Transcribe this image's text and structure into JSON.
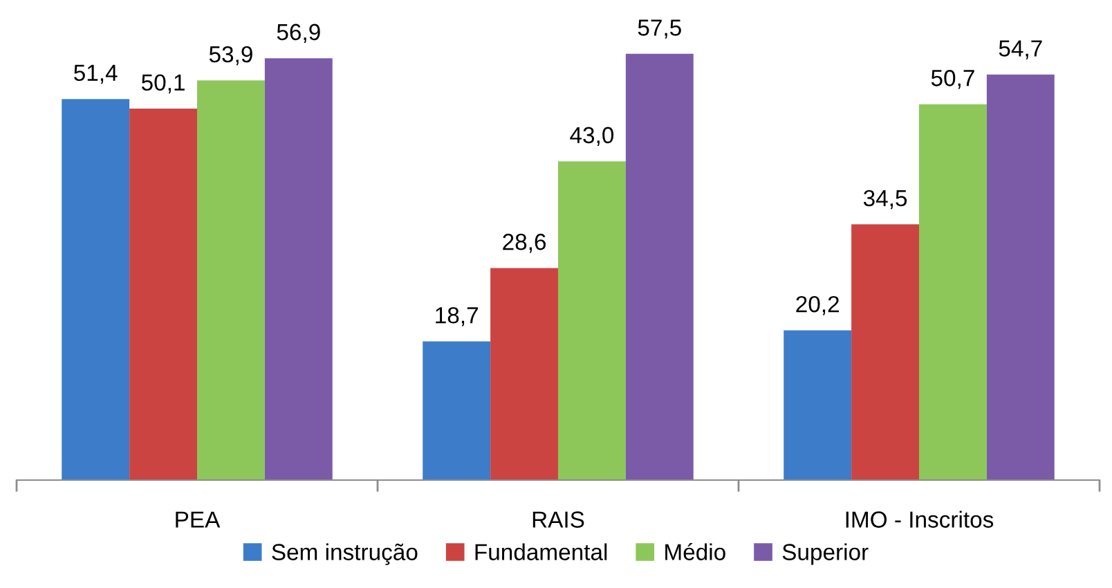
{
  "chart_data": {
    "type": "bar",
    "categories": [
      "PEA",
      "RAIS",
      "IMO - Inscritos"
    ],
    "series": [
      {
        "name": "Sem instrução",
        "color": "#3d7cc9",
        "values": [
          51.4,
          18.7,
          20.2
        ],
        "value_labels": [
          "51,4",
          "18,7",
          "20,2"
        ]
      },
      {
        "name": "Fundamental",
        "color": "#cc4441",
        "values": [
          50.1,
          28.6,
          34.5
        ],
        "value_labels": [
          "50,1",
          "28,6",
          "34,5"
        ]
      },
      {
        "name": "Médio",
        "color": "#8dc75a",
        "values": [
          53.9,
          43.0,
          50.7
        ],
        "value_labels": [
          "53,9",
          "43,0",
          "50,7"
        ]
      },
      {
        "name": "Superior",
        "color": "#7b5ba8",
        "values": [
          56.9,
          57.5,
          54.7
        ],
        "value_labels": [
          "56,9",
          "57,5",
          "54,7"
        ]
      }
    ],
    "legend": "bottom"
  }
}
